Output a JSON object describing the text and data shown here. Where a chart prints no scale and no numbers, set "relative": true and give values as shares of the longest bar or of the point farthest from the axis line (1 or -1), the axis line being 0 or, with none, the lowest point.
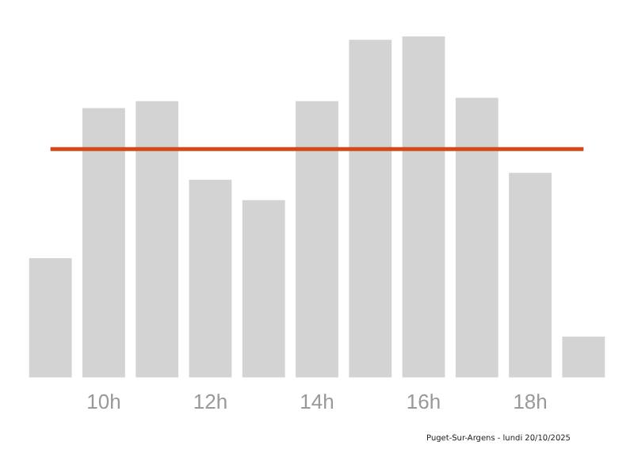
{
  "chart_data": {
    "type": "bar",
    "relative": true,
    "categories": [
      null,
      "10h",
      null,
      "12h",
      null,
      "14h",
      null,
      "16h",
      null,
      "18h",
      null
    ],
    "values": [
      0.35,
      0.79,
      0.81,
      0.58,
      0.52,
      0.81,
      0.99,
      1,
      0.82,
      0.6,
      0.12
    ],
    "color": "#d3d3d3",
    "ref_lines": [
      {
        "axis": "y",
        "value": 0.67,
        "color": "#d24a1a",
        "line_style": "solid"
      }
    ],
    "annotations": [
      "Puget-Sur-Argens - lundi 20/10/2025"
    ],
    "grid": false,
    "legend": false
  }
}
